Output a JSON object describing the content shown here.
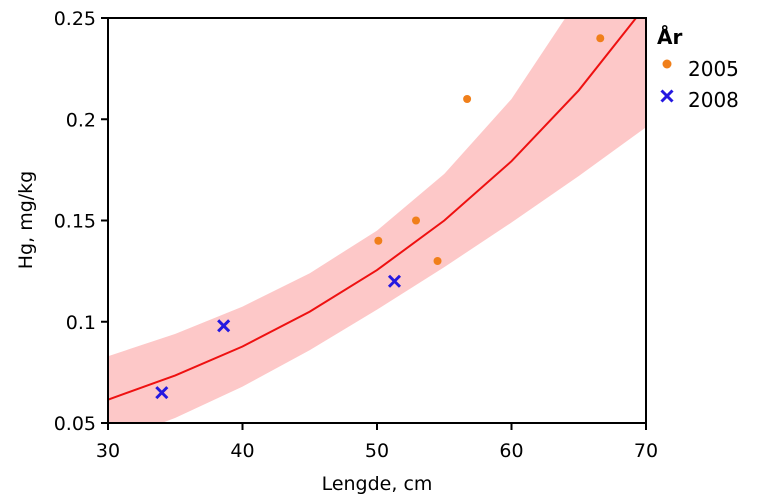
{
  "chart_data": {
    "type": "scatter",
    "title": "",
    "xlabel": "Lengde, cm",
    "ylabel": "Hg, mg/kg",
    "xlim": [
      30,
      70
    ],
    "ylim": [
      0.05,
      0.25
    ],
    "x_ticks": [
      30,
      40,
      50,
      60,
      70
    ],
    "x_tick_labels": [
      "30",
      "40",
      "50",
      "60",
      "70"
    ],
    "y_ticks": [
      0.05,
      0.1,
      0.15,
      0.2,
      0.25
    ],
    "y_tick_labels": [
      "0.05",
      "0.1",
      "0.15",
      "0.2",
      "0.25"
    ],
    "grid": false,
    "legend": {
      "title": "År",
      "position": "outside-top-right"
    },
    "series": [
      {
        "name": "2005",
        "marker": "dot",
        "color": "#f07f1a",
        "points": [
          {
            "x": 50.1,
            "y": 0.14
          },
          {
            "x": 52.9,
            "y": 0.15
          },
          {
            "x": 54.5,
            "y": 0.13
          },
          {
            "x": 56.7,
            "y": 0.21
          },
          {
            "x": 66.6,
            "y": 0.24
          }
        ]
      },
      {
        "name": "2008",
        "marker": "x",
        "color": "#2418e0",
        "points": [
          {
            "x": 34.0,
            "y": 0.065
          },
          {
            "x": 38.6,
            "y": 0.098
          },
          {
            "x": 51.3,
            "y": 0.12
          }
        ]
      }
    ],
    "fit": {
      "type": "exponential",
      "color": "#ee1111",
      "band_color": "#fdc8c8",
      "x": [
        30,
        35,
        40,
        45,
        50,
        55,
        60,
        65,
        70
      ],
      "y": [
        0.0615,
        0.0735,
        0.0878,
        0.105,
        0.1255,
        0.15,
        0.1793,
        0.2143,
        0.2562
      ],
      "band_lower": [
        0.04,
        0.0525,
        0.068,
        0.086,
        0.106,
        0.127,
        0.149,
        0.172,
        0.196
      ],
      "band_upper": [
        0.083,
        0.094,
        0.1075,
        0.124,
        0.145,
        0.173,
        0.21,
        0.26,
        0.32
      ]
    }
  }
}
